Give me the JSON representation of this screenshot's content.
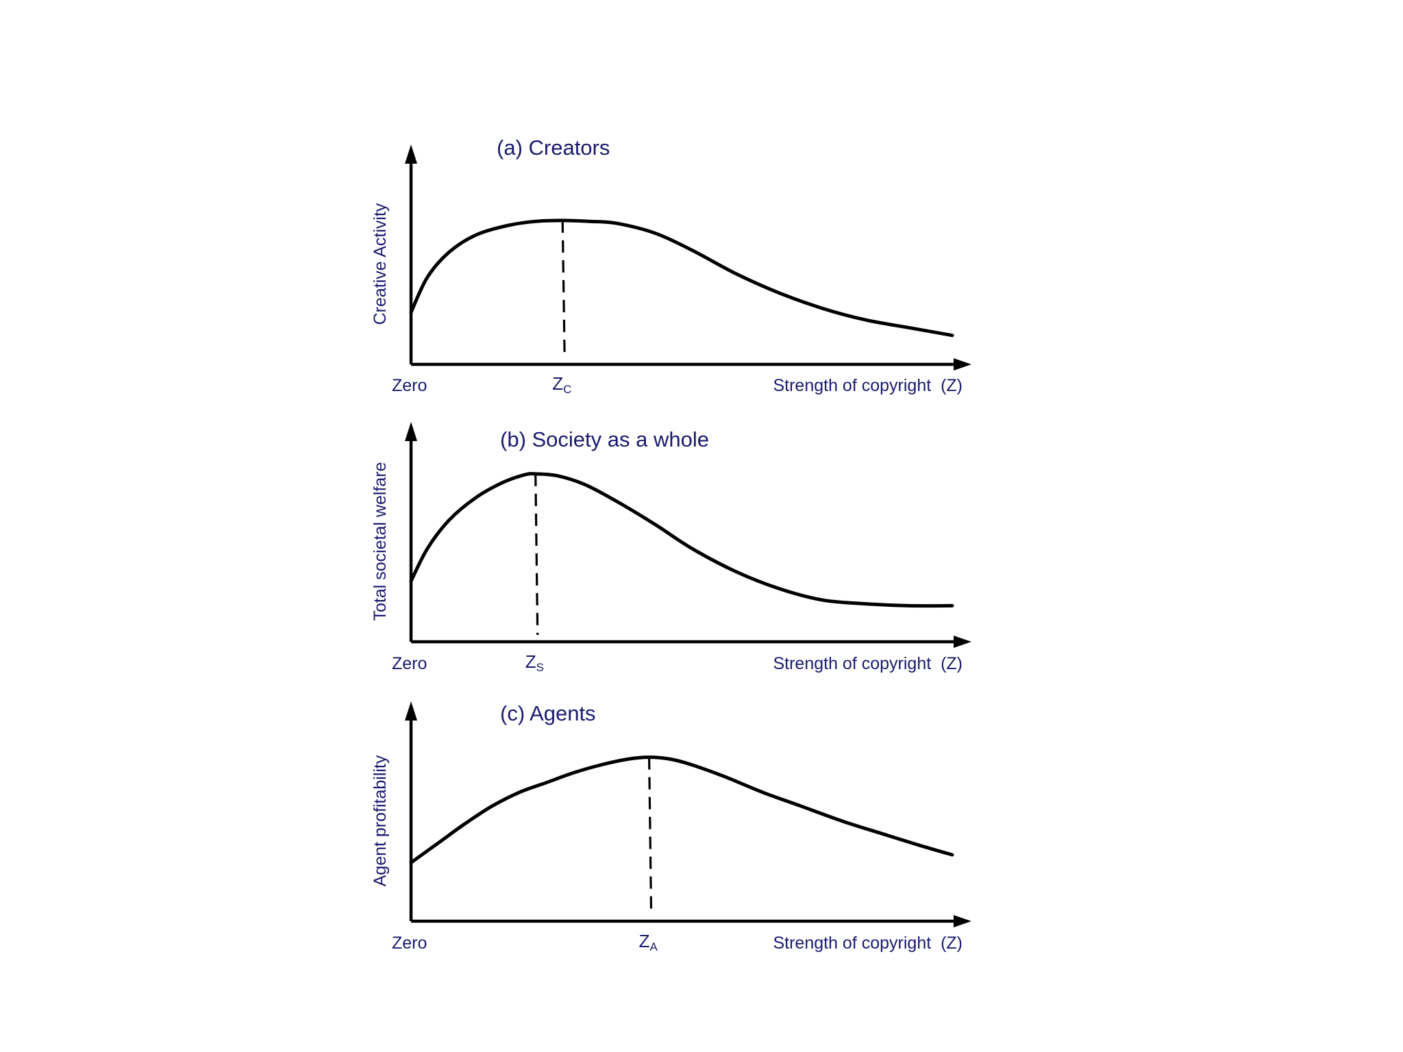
{
  "chart_data": [
    {
      "type": "line",
      "title": "(a) Creators",
      "ylabel": "Creative Activity",
      "xlabel": "Strength of copyright  (Z)",
      "x_origin_label": "Zero",
      "grid": false,
      "xlim": [
        0,
        1
      ],
      "ylim": [
        0,
        1
      ],
      "marker": {
        "main": "Z",
        "sub": "C",
        "x": 0.28
      },
      "series": [
        {
          "x": [
            0,
            0.03,
            0.07,
            0.12,
            0.18,
            0.23,
            0.28,
            0.33,
            0.38,
            0.45,
            0.52,
            0.6,
            0.68,
            0.76,
            0.84,
            0.92,
            1.0
          ],
          "y": [
            0.27,
            0.45,
            0.58,
            0.67,
            0.72,
            0.74,
            0.745,
            0.74,
            0.73,
            0.68,
            0.59,
            0.47,
            0.37,
            0.29,
            0.23,
            0.19,
            0.15
          ]
        }
      ]
    },
    {
      "type": "line",
      "title": "(b) Society as a whole",
      "ylabel": "Total societal welfare",
      "xlabel": "Strength of copyright  (Z)",
      "x_origin_label": "Zero",
      "grid": false,
      "xlim": [
        0,
        1
      ],
      "ylim": [
        0,
        1
      ],
      "marker": {
        "main": "Z",
        "sub": "S",
        "x": 0.23
      },
      "series": [
        {
          "x": [
            0,
            0.03,
            0.07,
            0.12,
            0.17,
            0.21,
            0.23,
            0.27,
            0.32,
            0.38,
            0.45,
            0.52,
            0.6,
            0.68,
            0.76,
            0.84,
            0.92,
            1.0
          ],
          "y": [
            0.32,
            0.49,
            0.64,
            0.76,
            0.84,
            0.88,
            0.885,
            0.875,
            0.83,
            0.74,
            0.62,
            0.49,
            0.37,
            0.28,
            0.22,
            0.2,
            0.19,
            0.19
          ]
        }
      ]
    },
    {
      "type": "line",
      "title": "(c) Agents",
      "ylabel": "Agent profitability",
      "xlabel": "Strength of copyright  (Z)",
      "x_origin_label": "Zero",
      "grid": false,
      "xlim": [
        0,
        1
      ],
      "ylim": [
        0,
        1
      ],
      "marker": {
        "main": "Z",
        "sub": "A",
        "x": 0.44
      },
      "series": [
        {
          "x": [
            0,
            0.05,
            0.1,
            0.15,
            0.2,
            0.25,
            0.3,
            0.35,
            0.4,
            0.44,
            0.48,
            0.52,
            0.58,
            0.65,
            0.72,
            0.8,
            0.88,
            0.95,
            1.0
          ],
          "y": [
            0.3,
            0.4,
            0.5,
            0.59,
            0.66,
            0.71,
            0.76,
            0.8,
            0.83,
            0.84,
            0.83,
            0.8,
            0.74,
            0.66,
            0.59,
            0.51,
            0.44,
            0.38,
            0.34
          ]
        }
      ]
    }
  ]
}
